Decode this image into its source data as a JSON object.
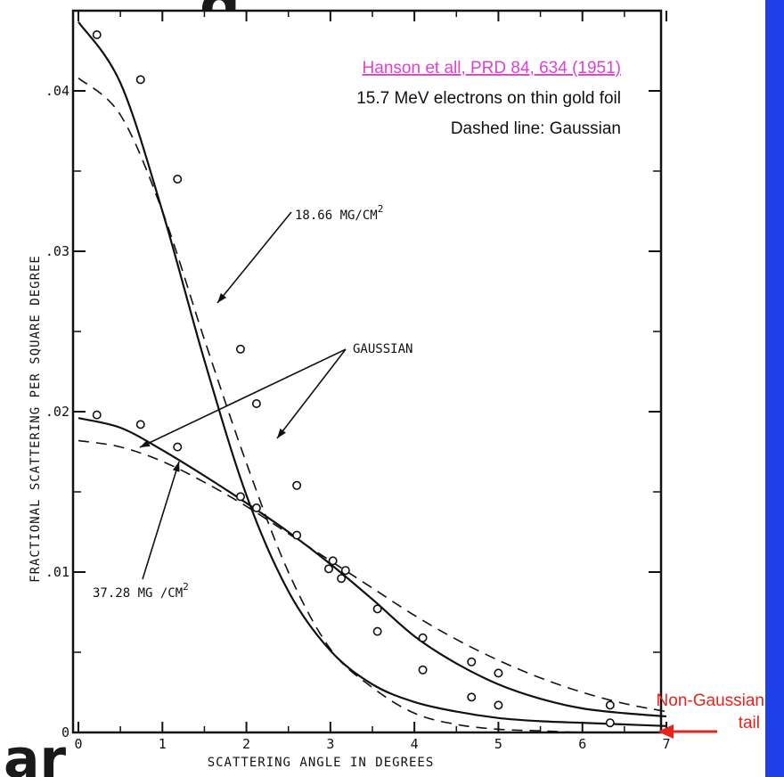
{
  "chart_data": {
    "type": "line",
    "xlabel": "SCATTERING ANGLE IN DEGREES",
    "ylabel": "FRACTIONAL SCATTERING PER SQUARE DEGREE",
    "xlim": [
      0,
      7
    ],
    "ylim": [
      0,
      0.045
    ],
    "x_ticks": [
      0,
      1,
      2,
      3,
      4,
      5,
      6,
      7
    ],
    "x_tick_labels": [
      "0",
      "1",
      "2",
      "3",
      "4",
      "5",
      "6",
      "7"
    ],
    "y_ticks": [
      0,
      0.01,
      0.02,
      0.03,
      0.04
    ],
    "y_tick_labels": [
      "0",
      ".01",
      ".02",
      ".03",
      ".04"
    ],
    "grid": false,
    "series": [
      {
        "style": "solid",
        "x": [
          0,
          0.5,
          1.0,
          1.5,
          2.0,
          2.5,
          3.0,
          3.5,
          4.0,
          4.5,
          5.0,
          5.5,
          6.0,
          6.5,
          7.0
        ],
        "y": [
          0.0443,
          0.0405,
          0.0325,
          0.0232,
          0.0148,
          0.0088,
          0.0051,
          0.003,
          0.0019,
          0.0013,
          0.0009,
          0.0007,
          0.0006,
          0.0005,
          0.0004
        ]
      },
      {
        "style": "dashed",
        "x": [
          0,
          0.5,
          1.0,
          1.5,
          2.0,
          2.5,
          3.0,
          3.5,
          4.0,
          4.5,
          5.0,
          5.5,
          6.0,
          6.5,
          7.0
        ],
        "y": [
          0.0408,
          0.0385,
          0.0325,
          0.0245,
          0.0168,
          0.01,
          0.0052,
          0.0028,
          0.0012,
          0.0005,
          0.0002,
          0.0001,
          0.0,
          0.0,
          0.0
        ]
      },
      {
        "style": "solid",
        "x": [
          0,
          0.5,
          1.0,
          1.5,
          2.0,
          2.5,
          3.0,
          3.5,
          4.0,
          4.5,
          5.0,
          5.5,
          6.0,
          6.5,
          7.0
        ],
        "y": [
          0.0196,
          0.019,
          0.0176,
          0.016,
          0.0143,
          0.0125,
          0.0105,
          0.0083,
          0.006,
          0.0043,
          0.003,
          0.0021,
          0.0015,
          0.0012,
          0.001
        ]
      },
      {
        "style": "dashed",
        "x": [
          0,
          0.5,
          1.0,
          1.5,
          2.0,
          2.5,
          3.0,
          3.5,
          4.0,
          4.5,
          5.0,
          5.5,
          6.0,
          6.5,
          7.0
        ],
        "y": [
          0.0182,
          0.0178,
          0.0169,
          0.0156,
          0.0141,
          0.0124,
          0.0107,
          0.009,
          0.0073,
          0.0058,
          0.0045,
          0.0034,
          0.0025,
          0.0018,
          0.0013
        ]
      }
    ],
    "points": [
      {
        "x": 0.22,
        "y": 0.0435
      },
      {
        "x": 0.74,
        "y": 0.0407
      },
      {
        "x": 1.18,
        "y": 0.0345
      },
      {
        "x": 1.93,
        "y": 0.0239
      },
      {
        "x": 2.12,
        "y": 0.0205
      },
      {
        "x": 2.6,
        "y": 0.0154
      },
      {
        "x": 2.98,
        "y": 0.0102
      },
      {
        "x": 3.13,
        "y": 0.0096
      },
      {
        "x": 3.56,
        "y": 0.0063
      },
      {
        "x": 4.1,
        "y": 0.0039
      },
      {
        "x": 4.68,
        "y": 0.0022
      },
      {
        "x": 5.0,
        "y": 0.0017
      },
      {
        "x": 6.33,
        "y": 0.0006
      },
      {
        "x": 0.22,
        "y": 0.0198
      },
      {
        "x": 0.74,
        "y": 0.0192
      },
      {
        "x": 1.18,
        "y": 0.0178
      },
      {
        "x": 1.93,
        "y": 0.0147
      },
      {
        "x": 2.12,
        "y": 0.014
      },
      {
        "x": 2.6,
        "y": 0.0123
      },
      {
        "x": 3.03,
        "y": 0.0107
      },
      {
        "x": 3.18,
        "y": 0.0101
      },
      {
        "x": 3.56,
        "y": 0.0077
      },
      {
        "x": 4.1,
        "y": 0.0059
      },
      {
        "x": 4.68,
        "y": 0.0044
      },
      {
        "x": 5.0,
        "y": 0.0037
      },
      {
        "x": 6.33,
        "y": 0.0017
      }
    ],
    "annotations": {
      "label_thin": "18.66 MG/CM",
      "label_thin_sup": "2",
      "label_thick": "37.28 MG /CM",
      "label_thick_sup": "2",
      "label_gauss": "GAUSSIAN"
    }
  },
  "reference": {
    "citation": "Hanson et all, PRD 84, 634 (1951)",
    "line2": "15.7 MeV electrons on thin gold foil",
    "line3": "Dashed line: Gaussian"
  },
  "tail_label": {
    "line1": "Non-Gaussian",
    "line2": "tail"
  },
  "partial_text": {
    "top": "g",
    "bottom": "ar"
  },
  "colors": {
    "right_bar": "#1e3fe8",
    "tail_label": "#e8231a",
    "citation": "#e040d0",
    "ink": "#111111"
  }
}
